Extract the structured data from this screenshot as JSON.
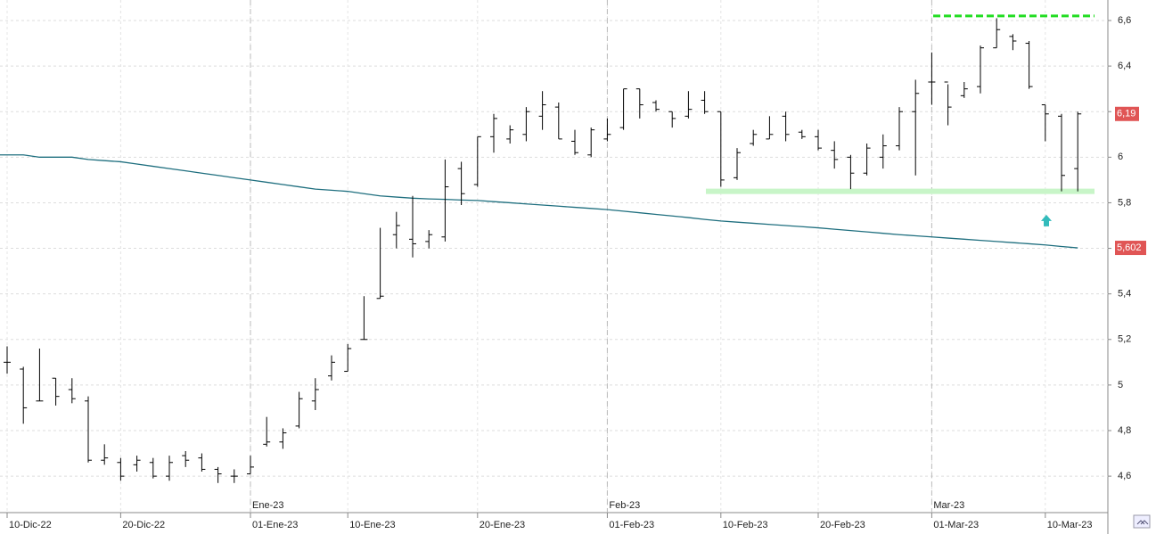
{
  "chart_data": {
    "type": "ohlc",
    "categories": [
      "10-Dic-22",
      null,
      null,
      null,
      null,
      null,
      null,
      "20-Dic-22",
      null,
      null,
      null,
      null,
      null,
      null,
      null,
      "01-Ene-23",
      null,
      null,
      null,
      null,
      null,
      "10-Ene-23",
      null,
      null,
      null,
      null,
      null,
      null,
      null,
      "20-Ene-23",
      null,
      null,
      null,
      null,
      null,
      null,
      null,
      "01-Feb-23",
      null,
      null,
      null,
      null,
      null,
      null,
      "10-Feb-23",
      null,
      null,
      null,
      null,
      null,
      "20-Feb-23",
      null,
      null,
      null,
      null,
      null,
      null,
      "01-Mar-23",
      null,
      null,
      null,
      null,
      null,
      null,
      "10-Mar-23",
      null,
      null
    ],
    "month_labels": [
      null,
      null,
      null,
      null,
      null,
      null,
      null,
      null,
      null,
      null,
      null,
      null,
      null,
      null,
      null,
      "Ene-23",
      null,
      null,
      null,
      null,
      null,
      null,
      null,
      null,
      null,
      null,
      null,
      null,
      null,
      null,
      null,
      null,
      null,
      null,
      null,
      null,
      null,
      "Feb-23",
      null,
      null,
      null,
      null,
      null,
      null,
      null,
      null,
      null,
      null,
      null,
      null,
      null,
      null,
      null,
      null,
      null,
      null,
      null,
      "Mar-23",
      null,
      null,
      null,
      null,
      null,
      null,
      null,
      null,
      null
    ],
    "open": [
      5.1,
      5.07,
      4.93,
      5.03,
      4.98,
      4.93,
      4.67,
      4.66,
      4.65,
      4.66,
      4.6,
      4.69,
      4.68,
      4.63,
      4.6,
      4.61,
      4.74,
      4.75,
      4.82,
      4.93,
      5.04,
      5.06,
      5.2,
      5.38,
      5.66,
      5.64,
      5.63,
      5.65,
      5.95,
      5.88,
      6.09,
      6.08,
      6.1,
      6.18,
      6.22,
      6.07,
      6.01,
      6.08,
      6.13,
      6.3,
      6.24,
      6.2,
      6.18,
      6.25,
      6.2,
      5.91,
      6.06,
      6.08,
      6.18,
      6.11,
      6.09,
      6.03,
      6.0,
      5.93,
      6.0,
      6.05,
      6.2,
      6.33,
      6.33,
      6.27,
      6.31,
      6.48,
      6.53,
      6.5,
      6.23,
      6.18,
      5.95
    ],
    "high": [
      5.17,
      5.08,
      5.16,
      5.03,
      5.03,
      4.95,
      4.74,
      4.68,
      4.69,
      4.68,
      4.69,
      4.71,
      4.7,
      4.64,
      4.63,
      4.69,
      4.86,
      4.81,
      4.97,
      5.03,
      5.13,
      5.18,
      5.39,
      5.69,
      5.76,
      5.83,
      5.68,
      5.99,
      5.98,
      6.09,
      6.19,
      6.14,
      6.22,
      6.29,
      6.24,
      6.12,
      6.13,
      6.17,
      6.3,
      6.3,
      6.25,
      6.2,
      6.29,
      6.29,
      6.2,
      6.04,
      6.12,
      6.18,
      6.2,
      6.12,
      6.12,
      6.07,
      6.01,
      6.06,
      6.1,
      6.22,
      6.34,
      6.46,
      6.32,
      6.33,
      6.49,
      6.61,
      6.54,
      6.51,
      6.23,
      6.19,
      6.2
    ],
    "low": [
      5.05,
      4.83,
      4.93,
      4.91,
      4.92,
      4.66,
      4.65,
      4.58,
      4.62,
      4.59,
      4.58,
      4.64,
      4.62,
      4.57,
      4.57,
      4.61,
      4.73,
      4.72,
      4.81,
      4.89,
      5.02,
      5.06,
      5.2,
      5.38,
      5.6,
      5.56,
      5.6,
      5.63,
      5.79,
      5.87,
      6.02,
      6.06,
      6.07,
      6.12,
      6.08,
      6.01,
      6.0,
      6.07,
      6.12,
      6.17,
      6.2,
      6.13,
      6.17,
      6.19,
      5.87,
      5.9,
      6.05,
      6.08,
      6.07,
      6.08,
      6.03,
      5.95,
      5.86,
      5.92,
      5.95,
      6.03,
      5.92,
      6.23,
      6.14,
      6.26,
      6.28,
      6.48,
      6.47,
      6.3,
      6.07,
      5.85,
      5.85
    ],
    "close": [
      5.1,
      4.9,
      4.93,
      4.95,
      4.94,
      4.67,
      4.68,
      4.6,
      4.67,
      4.6,
      4.66,
      4.67,
      4.63,
      4.61,
      4.6,
      4.64,
      4.75,
      4.79,
      4.94,
      4.98,
      5.1,
      5.16,
      5.2,
      5.39,
      5.7,
      5.62,
      5.66,
      5.87,
      5.84,
      6.09,
      6.17,
      6.12,
      6.2,
      6.23,
      6.08,
      6.02,
      6.12,
      6.1,
      6.3,
      6.23,
      6.21,
      6.17,
      6.21,
      6.2,
      5.9,
      6.02,
      6.1,
      6.1,
      6.1,
      6.09,
      6.04,
      5.99,
      5.93,
      6.04,
      6.05,
      6.2,
      6.28,
      6.33,
      6.22,
      6.3,
      6.48,
      6.56,
      6.51,
      6.31,
      6.19,
      5.92,
      6.19
    ],
    "bar_color": "#000000",
    "moving_average": {
      "color": "#1f6f7f",
      "values": [
        6.01,
        6.01,
        6.0,
        6.0,
        6.0,
        5.99,
        5.985,
        5.98,
        5.97,
        5.96,
        5.95,
        5.94,
        5.93,
        5.92,
        5.91,
        5.9,
        5.89,
        5.88,
        5.87,
        5.86,
        5.855,
        5.85,
        5.84,
        5.83,
        5.825,
        5.82,
        5.817,
        5.815,
        5.812,
        5.81,
        5.805,
        5.8,
        5.795,
        5.79,
        5.785,
        5.78,
        5.775,
        5.77,
        5.763,
        5.756,
        5.749,
        5.742,
        5.735,
        5.727,
        5.72,
        5.715,
        5.71,
        5.705,
        5.7,
        5.695,
        5.69,
        5.684,
        5.678,
        5.672,
        5.666,
        5.66,
        5.655,
        5.65,
        5.645,
        5.64,
        5.635,
        5.63,
        5.625,
        5.62,
        5.615,
        5.608,
        5.602
      ]
    },
    "price_labels": [
      {
        "value": 6.19,
        "label": "6,19"
      },
      {
        "value": 5.602,
        "label": "5,602"
      }
    ],
    "price_label_color": "#e05555",
    "levels": [
      {
        "value": 6.62,
        "color": "#22dd22",
        "style": "dashed"
      },
      {
        "value": 5.85,
        "color": "#c8f5c8",
        "style": "solid"
      }
    ],
    "arrow": {
      "value": 5.72,
      "color": "#33bbbb"
    },
    "ylim": [
      4.44,
      6.69
    ],
    "yticks": [
      {
        "value": 4.6,
        "label": "4,6"
      },
      {
        "value": 4.8,
        "label": "4,8"
      },
      {
        "value": 5,
        "label": "5"
      },
      {
        "value": 5.2,
        "label": "5,2"
      },
      {
        "value": 5.4,
        "label": "5,4"
      },
      {
        "value": 5.6,
        "label": "5,6"
      },
      {
        "value": 5.8,
        "label": "5,8"
      },
      {
        "value": 6,
        "label": "6"
      },
      {
        "value": 6.2,
        "label": "6,2"
      },
      {
        "value": 6.4,
        "label": "6,4"
      },
      {
        "value": 6.6,
        "label": "6,6"
      }
    ],
    "grid": true
  }
}
